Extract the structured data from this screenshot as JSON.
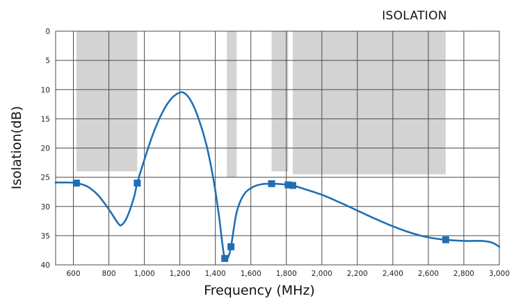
{
  "chart_data": {
    "type": "line",
    "title": "ISOLATION",
    "xlabel": "Frequency (MHz)",
    "ylabel": "Isolation(dB)",
    "xlim": [
      500,
      3000
    ],
    "ylim": [
      0,
      40
    ],
    "y_inverted": true,
    "grid": true,
    "x_ticks": [
      600,
      800,
      1000,
      1200,
      1400,
      1600,
      1800,
      2000,
      2200,
      2400,
      2600,
      2800,
      3000
    ],
    "x_tick_labels": [
      "600",
      "800",
      "1,000",
      "1,200",
      "1,400",
      "1,600",
      "1,800",
      "2,000",
      "2,200",
      "2,400",
      "2,600",
      "2,800",
      "3,000"
    ],
    "y_ticks": [
      0,
      5,
      10,
      15,
      20,
      25,
      30,
      35,
      40
    ],
    "y_tick_labels": [
      "0",
      "5",
      "10",
      "15",
      "20",
      "25",
      "30",
      "35",
      "40"
    ],
    "series": [
      {
        "color": "#1f6fb5",
        "x": [
          500,
          560,
          617,
          680,
          740,
          800,
          850,
          870,
          900,
          940,
          960,
          1000,
          1050,
          1100,
          1150,
          1200,
          1230,
          1260,
          1300,
          1350,
          1390,
          1420,
          1440,
          1453,
          1470,
          1488,
          1520,
          1560,
          1610,
          1660,
          1717,
          1780,
          1810,
          1836,
          1900,
          2000,
          2100,
          2200,
          2300,
          2400,
          2500,
          2600,
          2698,
          2800,
          2900,
          2960,
          3000
        ],
        "y": [
          25.9,
          25.9,
          26.0,
          26.6,
          28.1,
          30.5,
          32.8,
          33.2,
          32.0,
          28.6,
          26.0,
          22.0,
          17.5,
          14.0,
          11.6,
          10.5,
          10.7,
          11.8,
          14.5,
          19.5,
          25.5,
          31.5,
          36.5,
          38.9,
          38.8,
          36.9,
          31.0,
          28.0,
          26.7,
          26.2,
          26.1,
          26.2,
          26.3,
          26.4,
          27.0,
          28.0,
          29.3,
          30.7,
          32.1,
          33.4,
          34.5,
          35.3,
          35.7,
          35.9,
          35.9,
          36.2,
          36.9
        ]
      }
    ],
    "markers": {
      "x": [
        617,
        960,
        1453,
        1488,
        1717,
        1810,
        1836,
        2698
      ],
      "y": [
        26.0,
        26.0,
        38.9,
        36.9,
        26.1,
        26.3,
        26.4,
        35.7
      ]
    },
    "bands": [
      {
        "x0": 617,
        "x1": 960,
        "y0": 0,
        "y1": 24
      },
      {
        "x0": 1465,
        "x1": 1520,
        "y0": 0,
        "y1": 25
      },
      {
        "x0": 1717,
        "x1": 1810,
        "y0": 0,
        "y1": 24
      },
      {
        "x0": 1836,
        "x1": 2698,
        "y0": 0,
        "y1": 24.5
      }
    ]
  }
}
